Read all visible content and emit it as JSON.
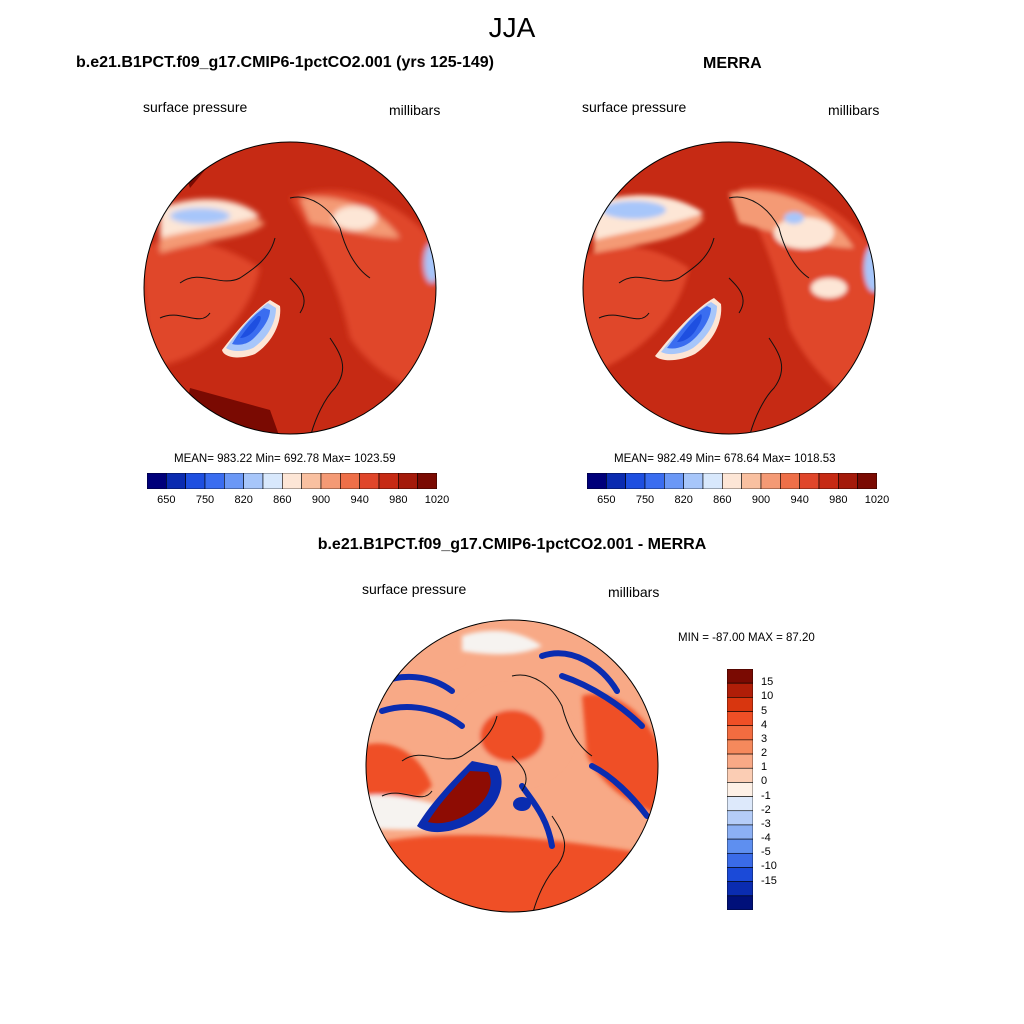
{
  "header": {
    "title": "JJA"
  },
  "panels": [
    {
      "id": "model",
      "title": "b.e21.B1PCT.f09_g17.CMIP6-1pctCO2.001 (yrs 125-149)",
      "left_label": "surface pressure",
      "right_label": "millibars",
      "stats": "MEAN= 983.22  Min= 692.78  Max= 1023.59"
    },
    {
      "id": "obs",
      "title": "MERRA",
      "left_label": "surface pressure",
      "right_label": "millibars",
      "stats": "MEAN= 982.49  Min= 678.64  Max= 1018.53"
    },
    {
      "id": "diff",
      "title": "b.e21.B1PCT.f09_g17.CMIP6-1pctCO2.001 - MERRA",
      "left_label": "surface pressure",
      "right_label": "millibars",
      "stats": "MIN = -87.00 MAX =  87.20"
    }
  ],
  "colorbar_abs": {
    "colors": [
      "#00007a",
      "#0a2bb0",
      "#1e4fe0",
      "#3a6df0",
      "#6b98f6",
      "#a7c6fa",
      "#d8e8fc",
      "#fde6d6",
      "#f9c0a0",
      "#f49a75",
      "#ee6f48",
      "#e0462a",
      "#c62a14",
      "#a41a0a",
      "#7a0a02"
    ],
    "tick_labels": [
      "650",
      "750",
      "820",
      "860",
      "900",
      "940",
      "980",
      "1020"
    ]
  },
  "colorbar_diff": {
    "colors": [
      "#7a0a02",
      "#b01e08",
      "#d8360f",
      "#ef4f26",
      "#f26c40",
      "#f5895c",
      "#f8a986",
      "#fbcdb4",
      "#fdf0e6",
      "#dde9fb",
      "#b5cdf8",
      "#8cb0f4",
      "#5e8ff0",
      "#3a6be8",
      "#1b4ad8",
      "#0a2cb0",
      "#00107a"
    ],
    "tick_labels": [
      "15",
      "10",
      "5",
      "4",
      "3",
      "2",
      "1",
      "0",
      "-1",
      "-2",
      "-3",
      "-4",
      "-5",
      "-10",
      "-15"
    ]
  },
  "map_colors": {
    "base_red": "#c62a14",
    "orange": "#e0462a",
    "light_orange": "#f49a75",
    "pale": "#fde6d6",
    "light_blue": "#a7c6fa",
    "mid_blue": "#3a6df0",
    "dark_blue": "#1e4fe0",
    "dark_red": "#7a0a02",
    "diff_orange": "#ef4f26",
    "diff_light": "#f8a986",
    "diff_white": "#f6f3f0",
    "diff_blue": "#0a2cb0",
    "diff_darkred": "#8e0c03"
  }
}
